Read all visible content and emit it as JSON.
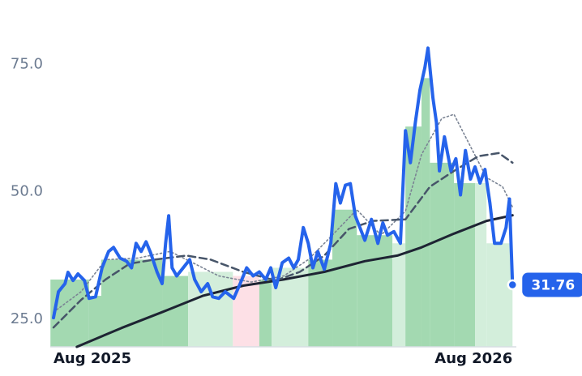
{
  "chart_data": {
    "type": "line",
    "xlim": [
      -0.085,
      12.1
    ],
    "ylim": [
      19.6,
      87.3
    ],
    "xticks": [
      {
        "value": 0,
        "label": "Aug 2025"
      },
      {
        "value": 12,
        "label": "Aug 2026"
      }
    ],
    "yticks": [
      {
        "value": 25,
        "label": "25.0"
      },
      {
        "value": 50,
        "label": "50.0"
      },
      {
        "value": 75,
        "label": "75.0"
      }
    ],
    "bands": {
      "bins": [
        -0.08,
        0.93,
        1.25,
        2.84,
        3.52,
        4.69,
        5.38,
        5.7,
        6.66,
        7.29,
        7.93,
        8.86,
        9.2,
        9.62,
        9.84,
        10.47,
        11.02,
        11.32,
        12
      ],
      "values": [
        32.8,
        29.6,
        36.7,
        33.5,
        34.3,
        33.5,
        32.8,
        35.1,
        36.7,
        46.5,
        41.5,
        39.9,
        62.8,
        72.3,
        55.7,
        51.7,
        51.7,
        39.9
      ],
      "colors": [
        "#a3d9b1",
        "#a3d9b1",
        "#a3d9b1",
        "#a3d9b1",
        "#d3eedb",
        "#fde0e6",
        "#a3d9b1",
        "#d3eedb",
        "#a3d9b1",
        "#a3d9b1",
        "#a3d9b1",
        "#d3eedb",
        "#a3d9b1",
        "#a3d9b1",
        "#a3d9b1",
        "#a3d9b1",
        "#d3eedb",
        "#d3eedb"
      ]
    },
    "series": [
      {
        "color": "#2563eb",
        "style": "solid",
        "x": [
          0,
          0.13,
          0.3,
          0.38,
          0.51,
          0.64,
          0.81,
          0.93,
          1.1,
          1.27,
          1.44,
          1.57,
          1.74,
          1.91,
          2.04,
          2.16,
          2.29,
          2.42,
          2.54,
          2.71,
          2.84,
          2.93,
          3.01,
          3.1,
          3.22,
          3.39,
          3.56,
          3.69,
          3.86,
          4.03,
          4.16,
          4.32,
          4.49,
          4.71,
          4.88,
          5.05,
          5.22,
          5.38,
          5.55,
          5.68,
          5.81,
          5.98,
          6.15,
          6.28,
          6.4,
          6.53,
          6.66,
          6.78,
          6.91,
          7.08,
          7.25,
          7.38,
          7.5,
          7.63,
          7.76,
          7.89,
          8.01,
          8.14,
          8.31,
          8.48,
          8.61,
          8.73,
          8.9,
          9.07,
          9.2,
          9.33,
          9.46,
          9.58,
          9.71,
          9.79,
          9.92,
          10.01,
          10.09,
          10.22,
          10.39,
          10.52,
          10.64,
          10.77,
          10.9,
          11.02,
          11.15,
          11.28,
          11.41,
          11.53,
          11.7,
          11.83,
          11.92,
          12
        ],
        "values": [
          25.3,
          30.4,
          32.0,
          34.2,
          32.6,
          33.9,
          32.6,
          29.1,
          29.4,
          35.1,
          38.3,
          39.1,
          37.0,
          36.4,
          35.1,
          39.9,
          38.3,
          40.2,
          38.0,
          34.2,
          32.0,
          39.9,
          45.3,
          35.1,
          33.5,
          35.1,
          36.7,
          32.8,
          30.4,
          32.0,
          29.4,
          29.1,
          30.4,
          29.1,
          32.0,
          35.1,
          33.5,
          34.3,
          32.8,
          35.1,
          31.2,
          36.1,
          37.0,
          35.1,
          36.7,
          43.0,
          39.9,
          35.1,
          38.3,
          34.8,
          39.9,
          51.6,
          47.8,
          51.3,
          51.6,
          45.3,
          43.0,
          40.5,
          44.6,
          39.9,
          43.9,
          41.5,
          42.2,
          39.9,
          62.0,
          55.7,
          63.6,
          70.0,
          74.4,
          78.2,
          68.4,
          63.6,
          54.1,
          60.8,
          54.1,
          56.5,
          49.4,
          58.1,
          52.5,
          54.9,
          51.7,
          54.4,
          47.8,
          39.9,
          39.9,
          43.0,
          48.6,
          31.76
        ]
      },
      {
        "color": "#475569",
        "style": "dashed",
        "x": [
          0,
          0.72,
          1.36,
          1.99,
          2.63,
          3.48,
          4.11,
          4.96,
          5.81,
          6.44,
          7.08,
          7.72,
          8.35,
          9.2,
          9.84,
          10.47,
          11.11,
          11.64,
          12
        ],
        "values": [
          23.4,
          28.8,
          32.8,
          35.9,
          36.7,
          37.5,
          36.7,
          34.3,
          32.6,
          34.3,
          37.5,
          42.7,
          44.3,
          44.6,
          51.0,
          54.1,
          57.0,
          57.6,
          55.7
        ]
      },
      {
        "color": "#7b8494",
        "style": "dotted",
        "x": [
          0,
          0.72,
          1.36,
          2.2,
          3.05,
          3.69,
          4.32,
          5.17,
          6.02,
          6.66,
          7.29,
          7.93,
          8.56,
          9.2,
          9.62,
          10.15,
          10.47,
          10.9,
          11.32,
          11.74,
          12
        ],
        "values": [
          26.4,
          30.4,
          36.7,
          37.0,
          38.3,
          35.9,
          33.5,
          32.3,
          33.5,
          36.7,
          41.5,
          46.5,
          41.5,
          46.2,
          57.3,
          64.4,
          65.2,
          58.9,
          52.8,
          51.0,
          47.0
        ]
      },
      {
        "color": "#1e2433",
        "style": "solid",
        "x": [
          0.61,
          1.78,
          2.84,
          3.9,
          4.96,
          6.02,
          7.08,
          8.14,
          8.99,
          9.62,
          10.47,
          11.32,
          12
        ],
        "values": [
          19.6,
          23.3,
          26.4,
          29.6,
          31.6,
          32.8,
          34.3,
          36.4,
          37.5,
          39.1,
          41.8,
          44.3,
          45.4
        ]
      }
    ]
  }
}
